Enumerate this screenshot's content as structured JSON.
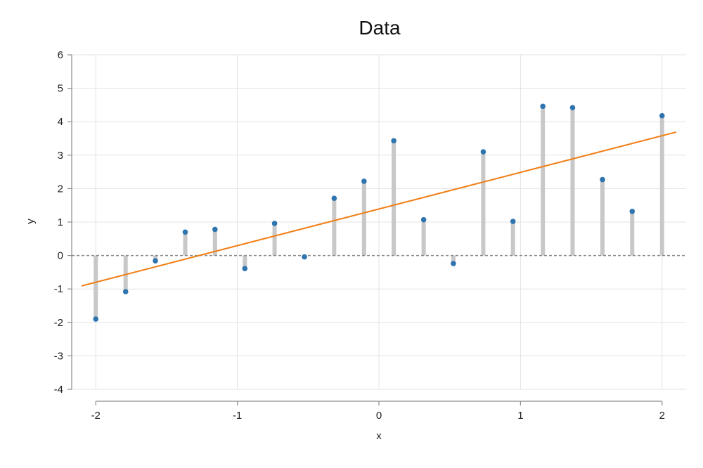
{
  "chart_data": {
    "type": "scatter",
    "title": "Data",
    "xlabel": "x",
    "ylabel": "y",
    "xlim": [
      -2.17,
      2.17
    ],
    "ylim": [
      -4,
      6
    ],
    "xticks": [
      -2,
      -1,
      0,
      1,
      2
    ],
    "yticks": [
      -4,
      -3,
      -2,
      -1,
      0,
      1,
      2,
      3,
      4,
      5,
      6
    ],
    "grid": true,
    "legend": "none",
    "points": {
      "x": [
        -2.0,
        -1.789,
        -1.579,
        -1.368,
        -1.158,
        -0.947,
        -0.737,
        -0.526,
        -0.316,
        -0.105,
        0.105,
        0.316,
        0.526,
        0.737,
        0.947,
        1.158,
        1.368,
        1.579,
        1.789,
        2.0
      ],
      "y": [
        -1.9,
        -1.08,
        -0.16,
        0.7,
        0.78,
        -0.39,
        0.96,
        -0.04,
        1.71,
        2.22,
        3.43,
        1.07,
        -0.24,
        3.1,
        1.02,
        4.46,
        4.42,
        2.27,
        1.32,
        4.18
      ]
    },
    "fit_line": {
      "x": [
        -2.1,
        2.1
      ],
      "y": [
        -0.91,
        3.69
      ]
    },
    "baseline_y": 0,
    "colors": {
      "points": "#2e75b0",
      "fit_line": "#f07f17",
      "stems": "#c8c8c8",
      "baseline": "#888888",
      "grid": "#e3e3e3",
      "axis": "#8c8c8c"
    }
  }
}
